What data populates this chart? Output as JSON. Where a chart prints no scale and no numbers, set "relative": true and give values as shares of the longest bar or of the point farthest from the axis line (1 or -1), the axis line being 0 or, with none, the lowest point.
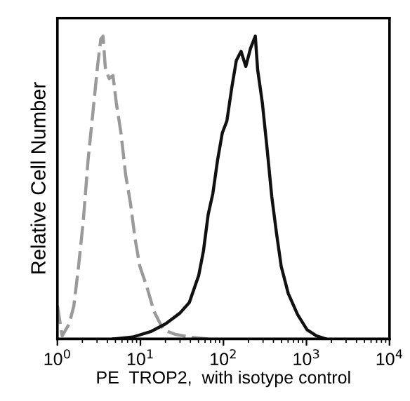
{
  "chart_data": {
    "type": "line",
    "xlabel": "PE  TROP2,  with isotype control",
    "ylabel": "Relative Cell Number",
    "relative": true,
    "log": "x",
    "xlim": [
      1,
      10000
    ],
    "xticks": [
      {
        "value": 1,
        "label": "10$^{0}$"
      },
      {
        "value": 10,
        "label": "10$^{1}$"
      },
      {
        "value": 100,
        "label": "10$^{2}$"
      },
      {
        "value": 1000,
        "label": "10$^{3}$"
      },
      {
        "value": 10000,
        "label": "10$^{4}$"
      }
    ],
    "tick_labels": "x",
    "grid": false,
    "legend": false,
    "marker": "none",
    "series": [
      {
        "color": "#9a9a9a",
        "line_style": "dashed",
        "x": [
          1.0,
          1.14,
          1.39,
          1.58,
          1.8,
          2.05,
          2.34,
          2.66,
          3.04,
          3.33,
          3.55,
          3.79,
          4.21,
          4.67,
          5.12,
          5.83,
          6.65,
          7.57,
          8.63,
          9.84,
          12.0,
          14.6,
          18.9,
          26.2,
          38.8,
          65.4
        ],
        "values": [
          0.11,
          0.01,
          0.05,
          0.11,
          0.24,
          0.39,
          0.59,
          0.74,
          0.9,
          0.99,
          1.0,
          0.89,
          0.86,
          0.87,
          0.78,
          0.68,
          0.54,
          0.45,
          0.33,
          0.24,
          0.17,
          0.09,
          0.03,
          0.015,
          0.006,
          0
        ]
      },
      {
        "color": "#111111",
        "line_style": "solid",
        "x": [
          4.8,
          8.09,
          13.6,
          20.2,
          29.9,
          38.8,
          50.4,
          57.4,
          65.4,
          74.5,
          84.9,
          96.8,
          110,
          126,
          143,
          163,
          186,
          212,
          242,
          258,
          294,
          335,
          382,
          435,
          496,
          603,
          783,
          1016,
          1321,
          1714
        ],
        "values": [
          0,
          0.006,
          0.025,
          0.05,
          0.085,
          0.12,
          0.21,
          0.29,
          0.41,
          0.48,
          0.59,
          0.68,
          0.72,
          0.83,
          0.92,
          0.95,
          0.9,
          0.96,
          1,
          0.89,
          0.78,
          0.63,
          0.47,
          0.35,
          0.24,
          0.15,
          0.08,
          0.03,
          0.01,
          0
        ]
      }
    ]
  }
}
